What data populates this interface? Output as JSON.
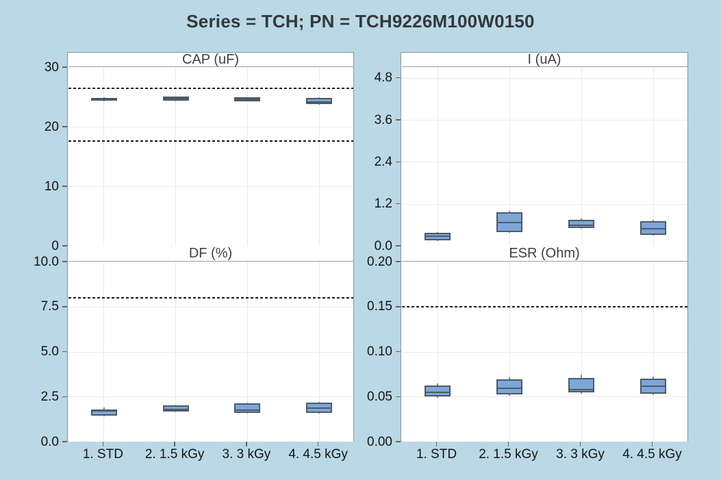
{
  "title": "Series = TCH; PN = TCH9226M100W0150",
  "colors": {
    "page_bg": "#bad8e5",
    "panel_bg": "#ffffff",
    "frame": "#8b9499",
    "grid": "#ebebeb",
    "box_fill": "#7ea6d8",
    "box_border": "#4d5a67",
    "median": "#4d5a67",
    "whisker": "#8c8c8c",
    "reference_line": "#1a1a1a",
    "tick_text": "#141414",
    "panel_title_text": "#3c4043",
    "main_title_text": "#33383b"
  },
  "categories": [
    "1. STD",
    "2. 1.5 kGy",
    "3. 3 kGy",
    "4. 4.5 kGy"
  ],
  "chart_data": [
    {
      "type": "boxplot",
      "title": "CAP (uF)",
      "position": {
        "col": 0,
        "row": 0
      },
      "categories": [
        "1. STD",
        "2. 1.5 kGy",
        "3. 3 kGy",
        "4. 4.5 kGy"
      ],
      "ylim": [
        0,
        30
      ],
      "y_value_at_plot_top": 30,
      "yticks": [
        0,
        10,
        20,
        30
      ],
      "ytick_labels": [
        "0",
        "10",
        "20",
        "30"
      ],
      "reference_lines": [
        26.4,
        17.6
      ],
      "grid": true,
      "boxes": [
        {
          "whisker_low": 24.3,
          "q1": 24.4,
          "median": 24.62,
          "q3": 24.82,
          "whisker_high": 24.9
        },
        {
          "whisker_low": 24.3,
          "q1": 24.4,
          "median": 24.7,
          "q3": 25.05,
          "whisker_high": 25.1
        },
        {
          "whisker_low": 24.2,
          "q1": 24.3,
          "median": 24.6,
          "q3": 24.9,
          "whisker_high": 25.0
        },
        {
          "whisker_low": 23.7,
          "q1": 23.8,
          "median": 24.1,
          "q3": 24.8,
          "whisker_high": 24.9
        }
      ]
    },
    {
      "type": "boxplot",
      "title": "I (uA)",
      "position": {
        "col": 1,
        "row": 0
      },
      "categories": [
        "1. STD",
        "2. 1.5 kGy",
        "3. 3 kGy",
        "4. 4.5 kGy"
      ],
      "ylim": [
        0,
        5.1
      ],
      "y_value_at_plot_top": 5.107,
      "yticks": [
        0,
        1.2,
        2.4,
        3.6,
        4.8
      ],
      "ytick_labels": [
        "0.0",
        "1.2",
        "2.4",
        "3.6",
        "4.8"
      ],
      "reference_lines": [],
      "grid": true,
      "boxes": [
        {
          "whisker_low": 0.13,
          "q1": 0.15,
          "median": 0.27,
          "q3": 0.37,
          "whisker_high": 0.39
        },
        {
          "whisker_low": 0.37,
          "q1": 0.4,
          "median": 0.67,
          "q3": 0.96,
          "whisker_high": 1.0
        },
        {
          "whisker_low": 0.48,
          "q1": 0.51,
          "median": 0.59,
          "q3": 0.74,
          "whisker_high": 0.78
        },
        {
          "whisker_low": 0.29,
          "q1": 0.31,
          "median": 0.49,
          "q3": 0.7,
          "whisker_high": 0.74
        }
      ]
    },
    {
      "type": "boxplot",
      "title": "DF (%)",
      "position": {
        "col": 0,
        "row": 1
      },
      "categories": [
        "1. STD",
        "2. 1.5 kGy",
        "3. 3 kGy",
        "4. 4.5 kGy"
      ],
      "ylim": [
        0,
        10
      ],
      "y_value_at_plot_top": 10,
      "yticks": [
        0,
        2.5,
        5.0,
        7.5,
        10.0
      ],
      "ytick_labels": [
        "0.0",
        "2.5",
        "5.0",
        "7.5",
        "10.0"
      ],
      "reference_lines": [
        8.0
      ],
      "grid": true,
      "boxes": [
        {
          "whisker_low": 1.42,
          "q1": 1.45,
          "median": 1.7,
          "q3": 1.79,
          "whisker_high": 1.9
        },
        {
          "whisker_low": 1.62,
          "q1": 1.68,
          "median": 1.78,
          "q3": 2.02,
          "whisker_high": 2.06
        },
        {
          "whisker_low": 1.55,
          "q1": 1.6,
          "median": 1.75,
          "q3": 2.14,
          "whisker_high": 2.18
        },
        {
          "whisker_low": 1.55,
          "q1": 1.6,
          "median": 1.87,
          "q3": 2.18,
          "whisker_high": 2.22
        }
      ]
    },
    {
      "type": "boxplot",
      "title": "ESR (Ohm)",
      "position": {
        "col": 1,
        "row": 1
      },
      "categories": [
        "1. STD",
        "2. 1.5 kGy",
        "3. 3 kGy",
        "4. 4.5 kGy"
      ],
      "ylim": [
        0,
        0.2
      ],
      "y_value_at_plot_top": 0.2,
      "yticks": [
        0,
        0.05,
        0.1,
        0.15,
        0.2
      ],
      "ytick_labels": [
        "0.00",
        "0.05",
        "0.10",
        "0.15",
        "0.20"
      ],
      "reference_lines": [
        0.15
      ],
      "grid": true,
      "boxes": [
        {
          "whisker_low": 0.049,
          "q1": 0.0505,
          "median": 0.0545,
          "q3": 0.0625,
          "whisker_high": 0.0645
        },
        {
          "whisker_low": 0.051,
          "q1": 0.0525,
          "median": 0.059,
          "q3": 0.0695,
          "whisker_high": 0.0715
        },
        {
          "whisker_low": 0.053,
          "q1": 0.055,
          "median": 0.058,
          "q3": 0.071,
          "whisker_high": 0.0745
        },
        {
          "whisker_low": 0.052,
          "q1": 0.0535,
          "median": 0.0615,
          "q3": 0.07,
          "whisker_high": 0.0725
        }
      ]
    }
  ]
}
